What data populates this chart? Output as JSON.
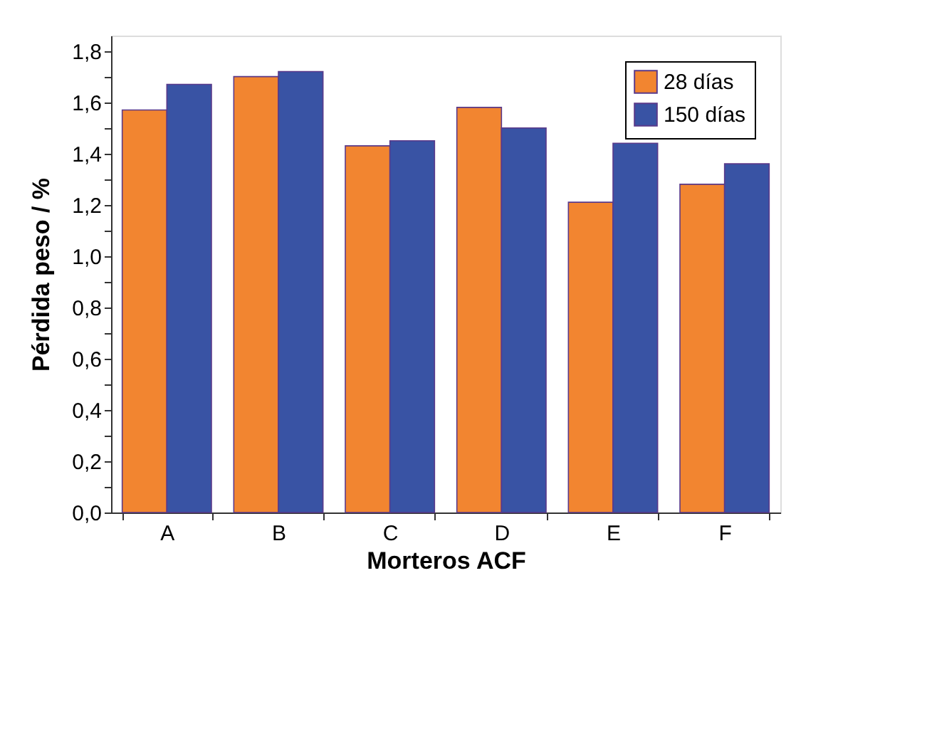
{
  "chart_data": {
    "type": "bar",
    "xlabel": "Morteros ACF",
    "ylabel": "Pérdida peso / %",
    "categories": [
      "A",
      "B",
      "C",
      "D",
      "E",
      "F"
    ],
    "series": [
      {
        "name": "28 días",
        "color": "#f28530",
        "values": [
          1.57,
          1.7,
          1.43,
          1.58,
          1.21,
          1.28
        ]
      },
      {
        "name": "150 días",
        "color": "#3953a4",
        "values": [
          1.67,
          1.72,
          1.45,
          1.5,
          1.44,
          1.36
        ]
      }
    ],
    "ylim": [
      0,
      1.86
    ],
    "yticks": [
      {
        "value": 0,
        "label": "0,0"
      },
      {
        "value": 0.1,
        "label": null
      },
      {
        "value": 0.2,
        "label": "0,2"
      },
      {
        "value": 0.3,
        "label": null
      },
      {
        "value": 0.4,
        "label": "0,4"
      },
      {
        "value": 0.5,
        "label": null
      },
      {
        "value": 0.6,
        "label": "0,6"
      },
      {
        "value": 0.7,
        "label": null
      },
      {
        "value": 0.8,
        "label": "0,8"
      },
      {
        "value": 0.9,
        "label": null
      },
      {
        "value": 1.0,
        "label": "1,0"
      },
      {
        "value": 1.1,
        "label": null
      },
      {
        "value": 1.2,
        "label": "1,2"
      },
      {
        "value": 1.3,
        "label": null
      },
      {
        "value": 1.4,
        "label": "1,4"
      },
      {
        "value": 1.5,
        "label": null
      },
      {
        "value": 1.6,
        "label": "1,6"
      },
      {
        "value": 1.7,
        "label": null
      },
      {
        "value": 1.8,
        "label": "1,8"
      }
    ],
    "grid": false,
    "legend": "top right"
  }
}
